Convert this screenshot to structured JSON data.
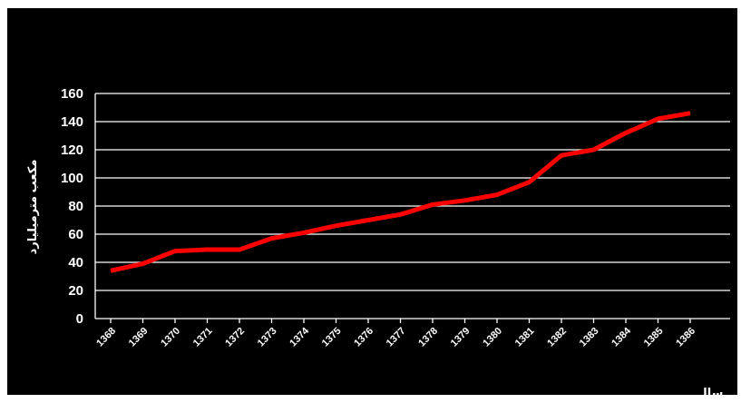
{
  "chart_data": {
    "type": "line",
    "title": "",
    "xlabel": "سال",
    "ylabel": "مکعب مترمیلیارد",
    "ylim": [
      0,
      160
    ],
    "yticks": [
      0,
      20,
      40,
      60,
      80,
      100,
      120,
      140,
      160
    ],
    "categories": [
      "1368",
      "1369",
      "1370",
      "1371",
      "1372",
      "1373",
      "1374",
      "1375",
      "1376",
      "1377",
      "1378",
      "1379",
      "1380",
      "1381",
      "1382",
      "1383",
      "1384",
      "1385",
      "1386"
    ],
    "series": [
      {
        "values": [
          34,
          39,
          48,
          49,
          49,
          57,
          61,
          66,
          70,
          74,
          81,
          84,
          88,
          97,
          116,
          120,
          132,
          142,
          146
        ]
      }
    ],
    "grid": true,
    "legend": "none",
    "colors": {
      "background": "#000000",
      "line": "#ff0000",
      "text": "#ffffff",
      "grid": "#ffffff"
    }
  }
}
